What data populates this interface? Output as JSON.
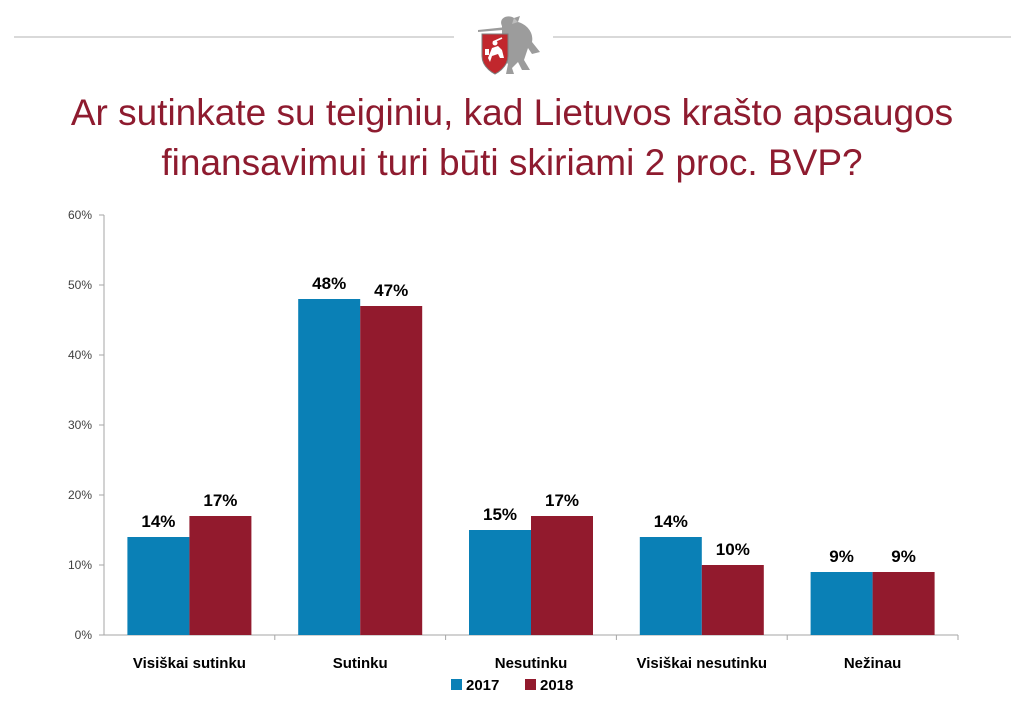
{
  "emblem": {
    "icon": "vytis-coat-of-arms-icon"
  },
  "title": "Ar sutinkate su teiginiu, kad Lietuvos krašto apsaugos finansavimui turi būti skiriami 2 proc. BVP?",
  "colors": {
    "title": "#8e1b2f",
    "series_2017": "#0a80b6",
    "series_2018": "#921a2d",
    "axis": "#a6a6a6"
  },
  "chart_data": {
    "type": "bar",
    "title": "Ar sutinkate su teiginiu, kad Lietuvos krašto apsaugos finansavimui turi būti skiriami 2 proc. BVP?",
    "categories": [
      "Visiškai sutinku",
      "Sutinku",
      "Nesutinku",
      "Visiškai nesutinku",
      "Nežinau"
    ],
    "series": [
      {
        "name": "2017",
        "values": [
          14,
          48,
          15,
          14,
          9
        ],
        "labels": [
          "14%",
          "48%",
          "15%",
          "14%",
          "9%"
        ]
      },
      {
        "name": "2018",
        "values": [
          17,
          47,
          17,
          10,
          9
        ],
        "labels": [
          "17%",
          "47%",
          "17%",
          "10%",
          "9%"
        ]
      }
    ],
    "ylim": [
      0,
      60
    ],
    "yticks": [
      0,
      10,
      20,
      30,
      40,
      50,
      60
    ],
    "ytick_labels": [
      "0%",
      "10%",
      "20%",
      "30%",
      "40%",
      "50%",
      "60%"
    ],
    "xlabel": "",
    "ylabel": "",
    "grid": false,
    "legend": "bottom"
  }
}
